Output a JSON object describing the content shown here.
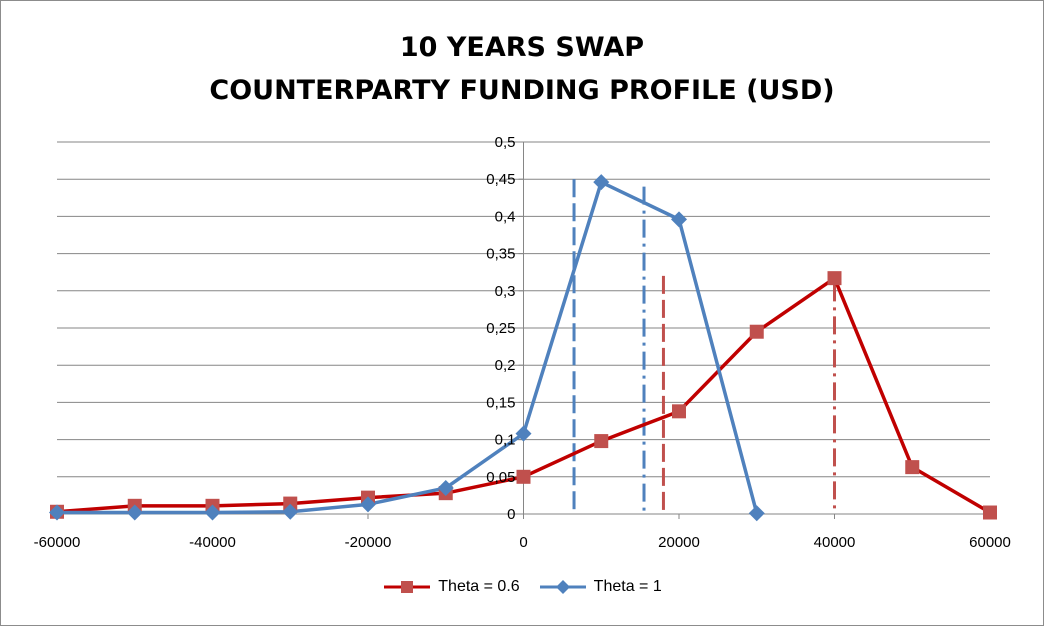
{
  "chart_data": {
    "type": "line",
    "title_lines": [
      "10 YEARS SWAP",
      "COUNTERPARTY FUNDING PROFILE (USD)"
    ],
    "xlim": [
      -60000,
      60000
    ],
    "ylim": [
      0,
      0.5
    ],
    "x_ticks": [
      -60000,
      -40000,
      -20000,
      0,
      20000,
      40000,
      60000
    ],
    "x_tick_labels": [
      "-60000",
      "-40000",
      "-20000",
      "0",
      "20000",
      "40000",
      "60000"
    ],
    "y_ticks": [
      0,
      0.05,
      0.1,
      0.15,
      0.2,
      0.25,
      0.3,
      0.35,
      0.4,
      0.45,
      0.5
    ],
    "y_tick_labels": [
      "0",
      "0,05",
      "0,1",
      "0,15",
      "0,2",
      "0,25",
      "0,3",
      "0,35",
      "0,4",
      "0,45",
      "0,5"
    ],
    "grid": true,
    "legend_position": "bottom",
    "series": [
      {
        "name": "Theta = 0.6",
        "color": "#c00000",
        "marker_color": "#c0504d",
        "marker": "square",
        "x": [
          -60000,
          -50000,
          -40000,
          -30000,
          -20000,
          -10000,
          0,
          10000,
          20000,
          30000,
          40000,
          50000,
          60000
        ],
        "values": [
          0.003,
          0.011,
          0.011,
          0.014,
          0.022,
          0.028,
          0.05,
          0.098,
          0.138,
          0.245,
          0.317,
          0.063,
          0.002
        ]
      },
      {
        "name": "Theta = 1",
        "color": "#4f81bd",
        "marker_color": "#4f81bd",
        "marker": "diamond",
        "x": [
          -60000,
          -50000,
          -40000,
          -30000,
          -20000,
          -10000,
          0,
          10000,
          20000,
          30000
        ],
        "values": [
          0.002,
          0.002,
          0.002,
          0.003,
          0.013,
          0.035,
          0.108,
          0.446,
          0.396,
          0.001
        ]
      }
    ],
    "reference_lines": [
      {
        "x": 6500,
        "y_top": 0.45,
        "style": "dash",
        "color": "#4f81bd"
      },
      {
        "x": 15500,
        "y_top": 0.44,
        "style": "dashdot",
        "color": "#4f81bd"
      },
      {
        "x": 18000,
        "y_top": 0.32,
        "style": "dash",
        "color": "#c0504d"
      },
      {
        "x": 40000,
        "y_top": 0.31,
        "style": "dashdot",
        "color": "#c0504d"
      }
    ]
  }
}
